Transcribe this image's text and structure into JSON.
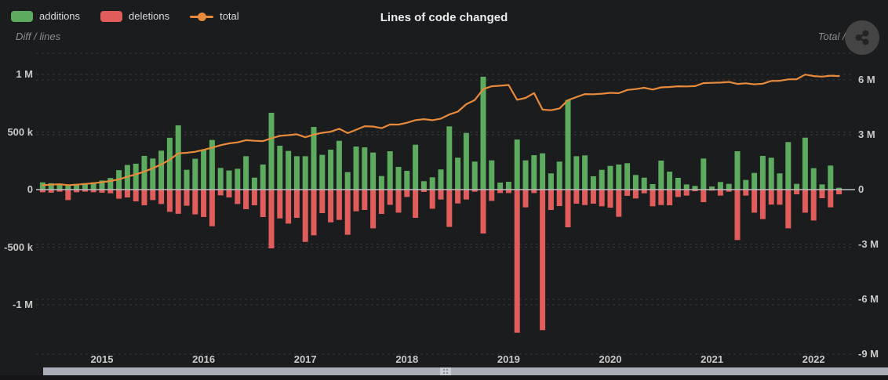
{
  "header": {
    "title": "Lines of code changed",
    "left_axis_title": "Diff / lines",
    "right_axis_title": "Total / lines",
    "legend": [
      {
        "label": "additions",
        "color": "#5cab5e",
        "type": "bar"
      },
      {
        "label": "deletions",
        "color": "#e15d5b",
        "type": "bar"
      },
      {
        "label": "total",
        "color": "#e78a3b",
        "type": "line"
      }
    ]
  },
  "chart_data": {
    "type": "bar",
    "title": "Lines of code changed",
    "unit": "lines of code, values in thousands",
    "start_month": "2014-06",
    "months": 95,
    "x_year_ticks": [
      {
        "label": "2015",
        "month_index": 7
      },
      {
        "label": "2016",
        "month_index": 19
      },
      {
        "label": "2017",
        "month_index": 31
      },
      {
        "label": "2018",
        "month_index": 43
      },
      {
        "label": "2019",
        "month_index": 55
      },
      {
        "label": "2020",
        "month_index": 67
      },
      {
        "label": "2021",
        "month_index": 79
      },
      {
        "label": "2022",
        "month_index": 91
      }
    ],
    "left_axis": {
      "title": "Diff / lines",
      "ticks": [
        {
          "v": 1000,
          "label": "1 M"
        },
        {
          "v": 500,
          "label": "500 k"
        },
        {
          "v": 0,
          "label": "0"
        },
        {
          "v": -500,
          "label": "-500 k"
        },
        {
          "v": -1000,
          "label": "-1 M"
        }
      ]
    },
    "right_axis": {
      "title": "Total / lines",
      "ticks": [
        {
          "v": 6000,
          "label": "6 M"
        },
        {
          "v": 3000,
          "label": "3 M"
        },
        {
          "v": 0,
          "label": "0"
        },
        {
          "v": -3000,
          "label": "-3 M"
        },
        {
          "v": -6000,
          "label": "-6 M"
        },
        {
          "v": -9000,
          "label": "-9 M"
        }
      ]
    },
    "series": [
      {
        "name": "additions",
        "type": "bar",
        "axis": "left",
        "color": "#5cab5e",
        "values": [
          63,
          56,
          45,
          40,
          50,
          56,
          63,
          79,
          101,
          169,
          214,
          225,
          293,
          270,
          338,
          450,
          558,
          172,
          268,
          347,
          431,
          188,
          166,
          181,
          290,
          104,
          218,
          667,
          381,
          336,
          290,
          290,
          544,
          302,
          347,
          424,
          152,
          374,
          367,
          322,
          118,
          333,
          197,
          163,
          390,
          73,
          107,
          175,
          549,
          277,
          492,
          243,
          980,
          254,
          61,
          68,
          435,
          254,
          299,
          315,
          141,
          243,
          778,
          290,
          297,
          116,
          172,
          206,
          218,
          229,
          127,
          104,
          48,
          252,
          156,
          102,
          45,
          32,
          270,
          27,
          66,
          50,
          333,
          84,
          145,
          293,
          277,
          141,
          413,
          50,
          451,
          186,
          45,
          209,
          16
        ]
      },
      {
        "name": "deletions",
        "type": "bar",
        "axis": "left",
        "color": "#e15d5b",
        "values": [
          -23,
          -27,
          -18,
          -91,
          -23,
          -18,
          -23,
          -27,
          -32,
          -79,
          -68,
          -102,
          -136,
          -91,
          -125,
          -193,
          -210,
          -140,
          -215,
          -238,
          -318,
          -50,
          -68,
          -125,
          -170,
          -136,
          -238,
          -510,
          -250,
          -295,
          -245,
          -454,
          -397,
          -204,
          -284,
          -263,
          -392,
          -188,
          -177,
          -336,
          -211,
          -132,
          -200,
          -64,
          -245,
          -20,
          -166,
          -86,
          -324,
          -120,
          -86,
          -18,
          -381,
          -98,
          -30,
          -30,
          -1243,
          -154,
          -30,
          -1220,
          -177,
          -143,
          -327,
          -122,
          -134,
          -122,
          -145,
          -157,
          -236,
          -54,
          -77,
          -32,
          -145,
          -134,
          -136,
          -64,
          -52,
          -14,
          -109,
          -9,
          -52,
          -18,
          -438,
          -52,
          -200,
          -256,
          -130,
          -131,
          -336,
          -41,
          -200,
          -268,
          -75,
          -154,
          -41
        ]
      },
      {
        "name": "total",
        "type": "line",
        "axis": "right",
        "color": "#e78a3b",
        "values": [
          240,
          269,
          296,
          245,
          272,
          310,
          350,
          402,
          471,
          561,
          707,
          830,
          987,
          1166,
          1379,
          1636,
          1984,
          2016,
          2069,
          2178,
          2291,
          2429,
          2527,
          2583,
          2703,
          2671,
          2651,
          2808,
          2939,
          2980,
          3025,
          2861,
          3008,
          3106,
          3169,
          3330,
          3090,
          3276,
          3466,
          3452,
          3359,
          3560,
          3557,
          3656,
          3801,
          3854,
          3795,
          3884,
          4109,
          4266,
          4672,
          4897,
          5496,
          5652,
          5683,
          5721,
          4913,
          5013,
          5282,
          4377,
          4341,
          4441,
          4892,
          5060,
          5223,
          5217,
          5244,
          5293,
          5275,
          5450,
          5500,
          5572,
          5475,
          5593,
          5613,
          5651,
          5644,
          5662,
          5823,
          5841,
          5855,
          5887,
          5782,
          5814,
          5759,
          5796,
          5943,
          5953,
          6030,
          6039,
          6290,
          6208,
          6178,
          6233,
          6208
        ]
      }
    ],
    "colors": {
      "background": "#1b1c1e",
      "grid": "#38383a",
      "zero_line": "#bdbdbd",
      "tick_label": "#c9c9c9",
      "scrollbar": "#a9aeb8",
      "scrollbar_grip": "#c9cdd5"
    }
  },
  "scrollbar": {
    "full_width": true
  }
}
